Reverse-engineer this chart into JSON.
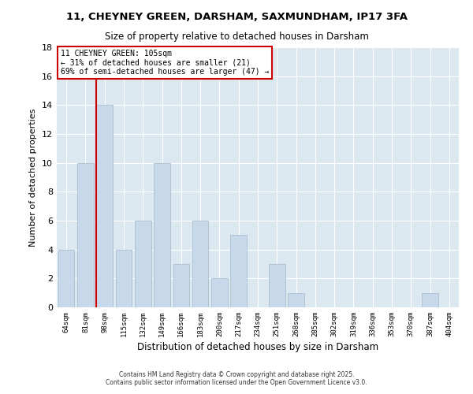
{
  "title1": "11, CHEYNEY GREEN, DARSHAM, SAXMUNDHAM, IP17 3FA",
  "title2": "Size of property relative to detached houses in Darsham",
  "xlabel": "Distribution of detached houses by size in Darsham",
  "ylabel": "Number of detached properties",
  "bar_color": "#c8d8eb",
  "bar_edge_color": "#aabfcf",
  "background_color": "#ffffff",
  "plot_bg_color": "#dce8f0",
  "grid_color": "#ffffff",
  "categories": [
    "64sqm",
    "81sqm",
    "98sqm",
    "115sqm",
    "132sqm",
    "149sqm",
    "166sqm",
    "183sqm",
    "200sqm",
    "217sqm",
    "234sqm",
    "251sqm",
    "268sqm",
    "285sqm",
    "302sqm",
    "319sqm",
    "336sqm",
    "353sqm",
    "370sqm",
    "387sqm",
    "404sqm"
  ],
  "values": [
    4,
    10,
    14,
    4,
    6,
    10,
    3,
    6,
    2,
    5,
    0,
    3,
    1,
    0,
    0,
    0,
    0,
    0,
    0,
    1,
    0
  ],
  "ylim": [
    0,
    18
  ],
  "yticks": [
    0,
    2,
    4,
    6,
    8,
    10,
    12,
    14,
    16,
    18
  ],
  "vline_index": 2,
  "vline_color": "#cc0000",
  "annotation_title": "11 CHEYNEY GREEN: 105sqm",
  "annotation_line1": "← 31% of detached houses are smaller (21)",
  "annotation_line2": "69% of semi-detached houses are larger (47) →",
  "footer1": "Contains HM Land Registry data © Crown copyright and database right 2025.",
  "footer2": "Contains public sector information licensed under the Open Government Licence v3.0."
}
